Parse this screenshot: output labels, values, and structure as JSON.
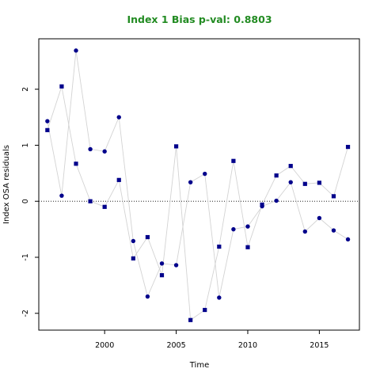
{
  "chart_data": {
    "type": "scatter",
    "title": "Index 1 Bias p-val: 0.8803",
    "title_color": "#228B22",
    "xlabel": "Time",
    "ylabel": "Index OSA residuals",
    "xlim": [
      1995.4,
      2017.8
    ],
    "ylim": [
      -2.3,
      2.9
    ],
    "xticks": [
      2000,
      2005,
      2010,
      2015
    ],
    "yticks": [
      -2,
      -1,
      0,
      1,
      2
    ],
    "reference_line": 0,
    "grid": false,
    "point_color": "#00008B",
    "line_color": "#d3d3d3",
    "series": [
      {
        "marker": "circle",
        "points": [
          [
            1996,
            1.43
          ],
          [
            1997,
            0.1
          ],
          [
            1998,
            2.69
          ],
          [
            1999,
            0.93
          ],
          [
            2000,
            0.89
          ],
          [
            2001,
            1.5
          ],
          [
            2002,
            -0.71
          ],
          [
            2003,
            -1.7
          ],
          [
            2004,
            -1.11
          ],
          [
            2005,
            -1.14
          ],
          [
            2006,
            0.34
          ],
          [
            2007,
            0.49
          ],
          [
            2008,
            -1.72
          ],
          [
            2009,
            -0.5
          ],
          [
            2010,
            -0.45
          ],
          [
            2011,
            -0.09
          ],
          [
            2012,
            0.01
          ],
          [
            2013,
            0.34
          ],
          [
            2014,
            -0.54
          ],
          [
            2015,
            -0.3
          ],
          [
            2016,
            -0.52
          ],
          [
            2017,
            -0.68
          ]
        ]
      },
      {
        "marker": "square",
        "points": [
          [
            1996,
            1.27
          ],
          [
            1997,
            2.05
          ],
          [
            1998,
            0.67
          ],
          [
            1999,
            0.0
          ],
          [
            2000,
            -0.1
          ],
          [
            2001,
            0.38
          ],
          [
            2002,
            -1.02
          ],
          [
            2003,
            -0.64
          ],
          [
            2004,
            -1.32
          ],
          [
            2005,
            0.98
          ],
          [
            2006,
            -2.12
          ],
          [
            2007,
            -1.94
          ],
          [
            2008,
            -0.81
          ],
          [
            2009,
            0.72
          ],
          [
            2010,
            -0.82
          ],
          [
            2011,
            -0.06
          ],
          [
            2012,
            0.46
          ],
          [
            2013,
            0.63
          ],
          [
            2014,
            0.31
          ],
          [
            2015,
            0.33
          ],
          [
            2016,
            0.09
          ],
          [
            2017,
            0.97
          ]
        ]
      }
    ]
  }
}
